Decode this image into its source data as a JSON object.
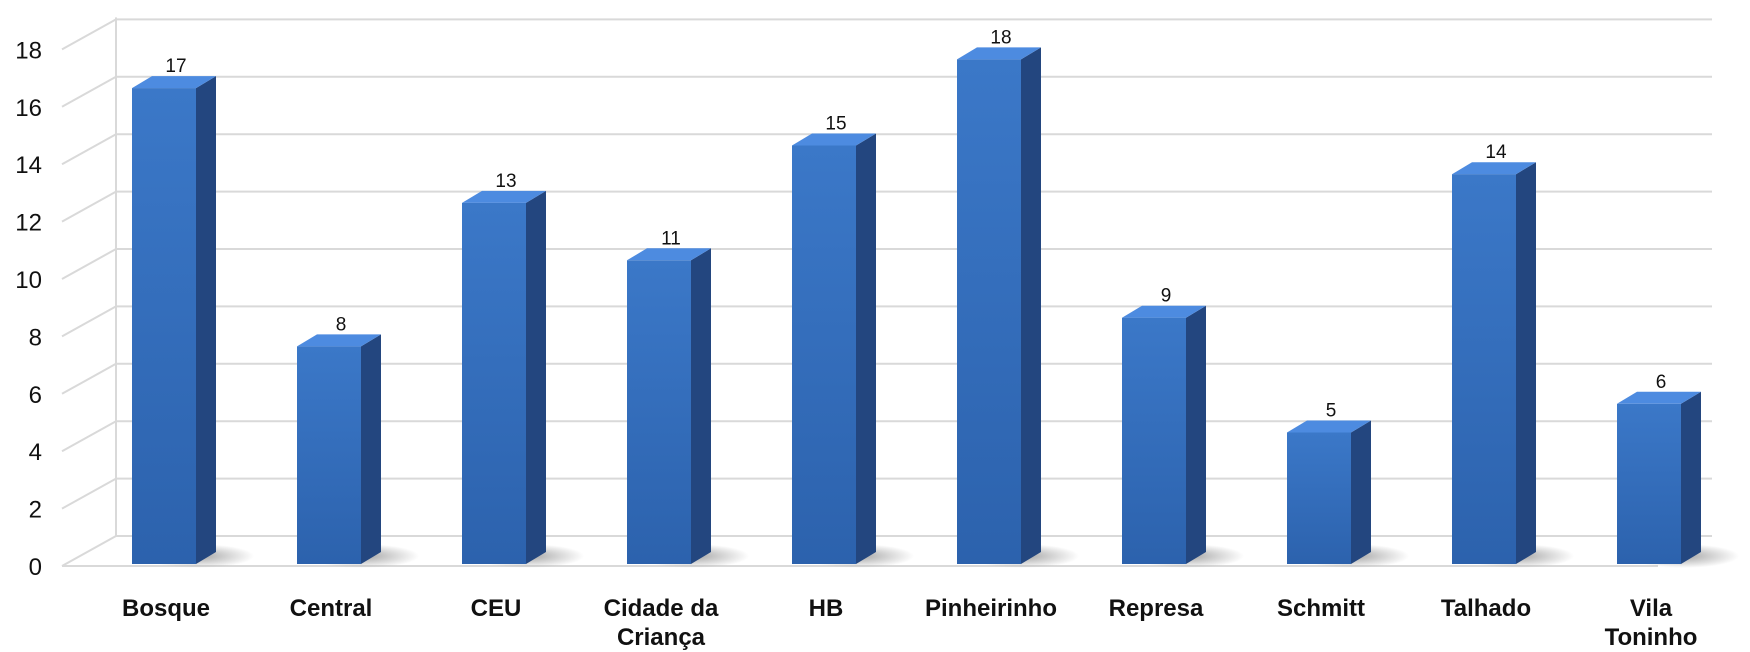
{
  "chart_data": {
    "type": "bar",
    "title": "",
    "xlabel": "",
    "ylabel": "",
    "categories": [
      [
        "Bosque"
      ],
      [
        "Central"
      ],
      [
        "CEU"
      ],
      [
        "Cidade da",
        "Criança"
      ],
      [
        "HB"
      ],
      [
        "Pinheirinho"
      ],
      [
        "Represa"
      ],
      [
        "Schmitt"
      ],
      [
        "Talhado"
      ],
      [
        "Vila",
        "Toninho"
      ]
    ],
    "values": [
      17,
      8,
      13,
      11,
      15,
      18,
      9,
      5,
      14,
      6
    ],
    "ylim": [
      0,
      18
    ],
    "yticks": [
      0,
      2,
      4,
      6,
      8,
      10,
      12,
      14,
      16,
      18
    ],
    "grid": true,
    "legend": "none",
    "style": "3d-column",
    "colors": {
      "bar_front": "#3b78c8",
      "bar_front_dark": "#2c62ad",
      "bar_side": "#23467f",
      "bar_top": "#4d8be0",
      "grid": "#d9d9d9",
      "shadow": "#9a9a9a"
    }
  }
}
